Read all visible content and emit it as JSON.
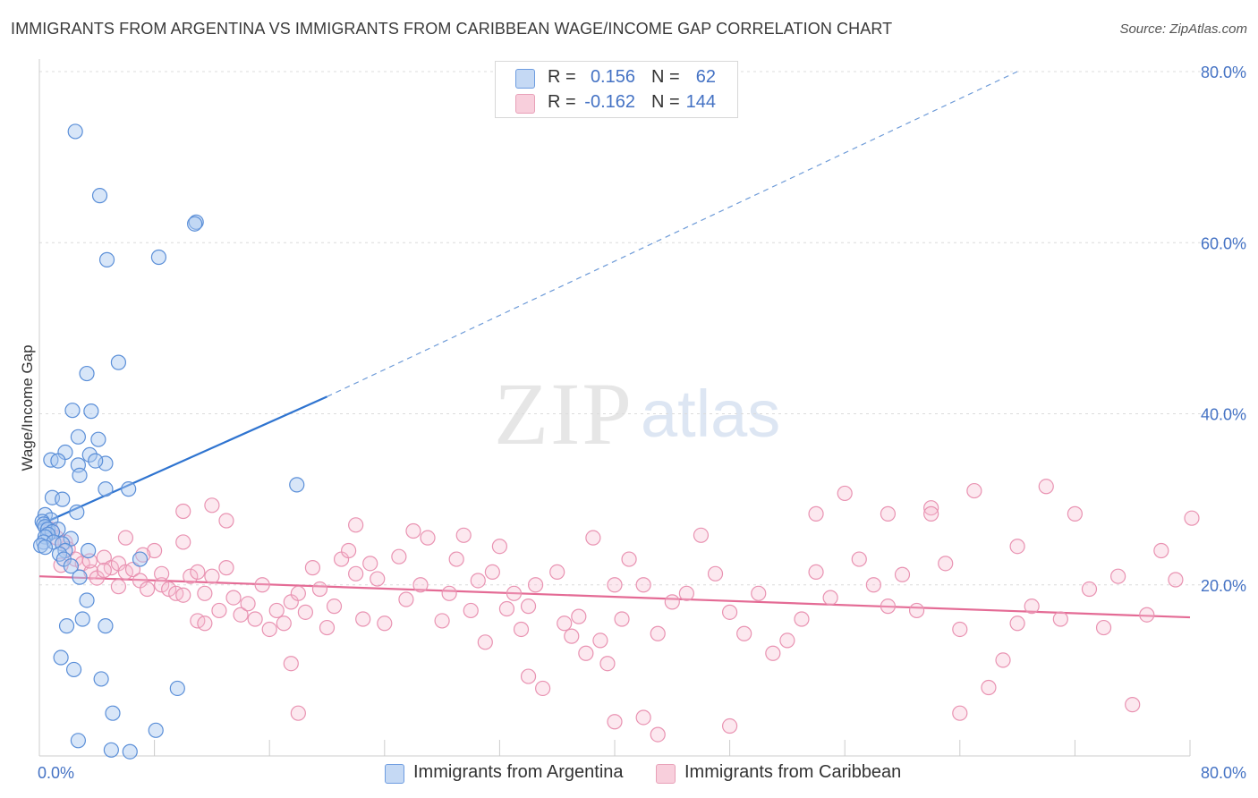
{
  "title": "IMMIGRANTS FROM ARGENTINA VS IMMIGRANTS FROM CARIBBEAN WAGE/INCOME GAP CORRELATION CHART",
  "source": "Source: ZipAtlas.com",
  "watermark": {
    "zip": "ZIP",
    "atlas": "atlas"
  },
  "legend": {
    "argentina": {
      "r_label": "R =",
      "r_value": "0.156",
      "n_label": "N =",
      "n_value": "62"
    },
    "caribbean": {
      "r_label": "R =",
      "r_value": "-0.162",
      "n_label": "N =",
      "n_value": "144"
    }
  },
  "bottom_legend": {
    "argentina": "Immigrants from Argentina",
    "caribbean": "Immigrants from Caribbean"
  },
  "colors": {
    "argentina": "#4a86d8",
    "argentina_fill": "#a9c8f0",
    "caribbean": "#e8729b",
    "caribbean_fill": "#f5bed0",
    "axis_text": "#4472c4"
  },
  "chart_data": {
    "type": "scatter",
    "title": "IMMIGRANTS FROM ARGENTINA VS IMMIGRANTS FROM CARIBBEAN WAGE/INCOME GAP CORRELATION CHART",
    "xlabel": "",
    "ylabel": "Wage/Income Gap",
    "xlim": [
      0,
      0.8
    ],
    "ylim": [
      0,
      0.8
    ],
    "x_tick_labels": [
      "0.0%",
      "80.0%"
    ],
    "y_tick_labels": [
      "20.0%",
      "40.0%",
      "60.0%",
      "80.0%"
    ],
    "y_ticks": [
      0.2,
      0.4,
      0.6,
      0.8
    ],
    "series": [
      {
        "name": "Immigrants from Argentina",
        "r": 0.156,
        "n": 62,
        "trend": {
          "x0": 0.0,
          "y0": 0.27,
          "x1": 0.2,
          "y1": 0.42,
          "dashed_to_x": 0.68,
          "dashed_to_y": 0.8
        },
        "points": [
          [
            0.025,
            0.73
          ],
          [
            0.042,
            0.655
          ],
          [
            0.109,
            0.624
          ],
          [
            0.108,
            0.622
          ],
          [
            0.047,
            0.58
          ],
          [
            0.083,
            0.583
          ],
          [
            0.033,
            0.447
          ],
          [
            0.055,
            0.46
          ],
          [
            0.023,
            0.404
          ],
          [
            0.036,
            0.403
          ],
          [
            0.027,
            0.373
          ],
          [
            0.041,
            0.37
          ],
          [
            0.018,
            0.355
          ],
          [
            0.035,
            0.352
          ],
          [
            0.008,
            0.346
          ],
          [
            0.027,
            0.34
          ],
          [
            0.046,
            0.342
          ],
          [
            0.039,
            0.345
          ],
          [
            0.013,
            0.345
          ],
          [
            0.028,
            0.328
          ],
          [
            0.046,
            0.312
          ],
          [
            0.062,
            0.312
          ],
          [
            0.179,
            0.317
          ],
          [
            0.009,
            0.302
          ],
          [
            0.016,
            0.3
          ],
          [
            0.004,
            0.282
          ],
          [
            0.026,
            0.285
          ],
          [
            0.008,
            0.276
          ],
          [
            0.002,
            0.274
          ],
          [
            0.003,
            0.271
          ],
          [
            0.004,
            0.268
          ],
          [
            0.006,
            0.265
          ],
          [
            0.013,
            0.265
          ],
          [
            0.009,
            0.262
          ],
          [
            0.006,
            0.259
          ],
          [
            0.004,
            0.256
          ],
          [
            0.022,
            0.254
          ],
          [
            0.003,
            0.25
          ],
          [
            0.01,
            0.25
          ],
          [
            0.016,
            0.248
          ],
          [
            0.001,
            0.246
          ],
          [
            0.004,
            0.244
          ],
          [
            0.018,
            0.24
          ],
          [
            0.034,
            0.24
          ],
          [
            0.014,
            0.236
          ],
          [
            0.017,
            0.23
          ],
          [
            0.022,
            0.222
          ],
          [
            0.07,
            0.23
          ],
          [
            0.028,
            0.209
          ],
          [
            0.033,
            0.182
          ],
          [
            0.03,
            0.16
          ],
          [
            0.019,
            0.152
          ],
          [
            0.046,
            0.152
          ],
          [
            0.015,
            0.115
          ],
          [
            0.024,
            0.101
          ],
          [
            0.043,
            0.09
          ],
          [
            0.096,
            0.079
          ],
          [
            0.051,
            0.05
          ],
          [
            0.027,
            0.018
          ],
          [
            0.081,
            0.03
          ],
          [
            0.05,
            0.007
          ],
          [
            0.063,
            0.005
          ]
        ]
      },
      {
        "name": "Immigrants from Caribbean",
        "r": -0.162,
        "n": 144,
        "trend": {
          "x0": 0.0,
          "y0": 0.21,
          "x1": 0.8,
          "y1": 0.162
        },
        "points": [
          [
            0.008,
            0.265
          ],
          [
            0.012,
            0.255
          ],
          [
            0.018,
            0.25
          ],
          [
            0.02,
            0.242
          ],
          [
            0.025,
            0.23
          ],
          [
            0.03,
            0.225
          ],
          [
            0.036,
            0.215
          ],
          [
            0.04,
            0.208
          ],
          [
            0.045,
            0.232
          ],
          [
            0.05,
            0.22
          ],
          [
            0.055,
            0.225
          ],
          [
            0.06,
            0.215
          ],
          [
            0.065,
            0.218
          ],
          [
            0.07,
            0.205
          ],
          [
            0.075,
            0.195
          ],
          [
            0.08,
            0.24
          ],
          [
            0.085,
            0.2
          ],
          [
            0.09,
            0.195
          ],
          [
            0.095,
            0.19
          ],
          [
            0.1,
            0.25
          ],
          [
            0.105,
            0.21
          ],
          [
            0.11,
            0.215
          ],
          [
            0.115,
            0.19
          ],
          [
            0.12,
            0.21
          ],
          [
            0.125,
            0.17
          ],
          [
            0.13,
            0.22
          ],
          [
            0.135,
            0.185
          ],
          [
            0.14,
            0.165
          ],
          [
            0.145,
            0.178
          ],
          [
            0.15,
            0.16
          ],
          [
            0.155,
            0.2
          ],
          [
            0.16,
            0.148
          ],
          [
            0.165,
            0.17
          ],
          [
            0.17,
            0.155
          ],
          [
            0.175,
            0.18
          ],
          [
            0.18,
            0.19
          ],
          [
            0.185,
            0.168
          ],
          [
            0.19,
            0.22
          ],
          [
            0.195,
            0.195
          ],
          [
            0.2,
            0.15
          ],
          [
            0.205,
            0.175
          ],
          [
            0.21,
            0.23
          ],
          [
            0.215,
            0.24
          ],
          [
            0.22,
            0.213
          ],
          [
            0.225,
            0.16
          ],
          [
            0.23,
            0.225
          ],
          [
            0.235,
            0.207
          ],
          [
            0.24,
            0.155
          ],
          [
            0.25,
            0.233
          ],
          [
            0.255,
            0.183
          ],
          [
            0.26,
            0.263
          ],
          [
            0.265,
            0.2
          ],
          [
            0.27,
            0.255
          ],
          [
            0.28,
            0.158
          ],
          [
            0.285,
            0.19
          ],
          [
            0.29,
            0.23
          ],
          [
            0.295,
            0.258
          ],
          [
            0.3,
            0.17
          ],
          [
            0.305,
            0.205
          ],
          [
            0.31,
            0.133
          ],
          [
            0.315,
            0.215
          ],
          [
            0.32,
            0.245
          ],
          [
            0.325,
            0.172
          ],
          [
            0.33,
            0.19
          ],
          [
            0.335,
            0.148
          ],
          [
            0.34,
            0.175
          ],
          [
            0.345,
            0.2
          ],
          [
            0.36,
            0.215
          ],
          [
            0.365,
            0.155
          ],
          [
            0.37,
            0.14
          ],
          [
            0.375,
            0.163
          ],
          [
            0.38,
            0.12
          ],
          [
            0.385,
            0.255
          ],
          [
            0.39,
            0.135
          ],
          [
            0.395,
            0.108
          ],
          [
            0.4,
            0.2
          ],
          [
            0.405,
            0.16
          ],
          [
            0.41,
            0.23
          ],
          [
            0.42,
            0.2
          ],
          [
            0.43,
            0.143
          ],
          [
            0.44,
            0.18
          ],
          [
            0.45,
            0.19
          ],
          [
            0.46,
            0.258
          ],
          [
            0.47,
            0.213
          ],
          [
            0.48,
            0.168
          ],
          [
            0.49,
            0.143
          ],
          [
            0.5,
            0.19
          ],
          [
            0.51,
            0.12
          ],
          [
            0.52,
            0.135
          ],
          [
            0.53,
            0.16
          ],
          [
            0.54,
            0.215
          ],
          [
            0.55,
            0.185
          ],
          [
            0.56,
            0.307
          ],
          [
            0.57,
            0.23
          ],
          [
            0.58,
            0.2
          ],
          [
            0.59,
            0.175
          ],
          [
            0.6,
            0.212
          ],
          [
            0.61,
            0.17
          ],
          [
            0.62,
            0.29
          ],
          [
            0.63,
            0.225
          ],
          [
            0.64,
            0.148
          ],
          [
            0.65,
            0.31
          ],
          [
            0.66,
            0.08
          ],
          [
            0.67,
            0.112
          ],
          [
            0.68,
            0.155
          ],
          [
            0.69,
            0.175
          ],
          [
            0.7,
            0.315
          ],
          [
            0.71,
            0.16
          ],
          [
            0.72,
            0.283
          ],
          [
            0.73,
            0.195
          ],
          [
            0.74,
            0.15
          ],
          [
            0.75,
            0.21
          ],
          [
            0.76,
            0.06
          ],
          [
            0.77,
            0.165
          ],
          [
            0.78,
            0.24
          ],
          [
            0.64,
            0.05
          ],
          [
            0.34,
            0.093
          ],
          [
            0.35,
            0.079
          ],
          [
            0.175,
            0.108
          ],
          [
            0.18,
            0.05
          ],
          [
            0.4,
            0.04
          ],
          [
            0.42,
            0.045
          ],
          [
            0.43,
            0.025
          ],
          [
            0.48,
            0.035
          ],
          [
            0.1,
            0.286
          ],
          [
            0.13,
            0.275
          ],
          [
            0.22,
            0.27
          ],
          [
            0.12,
            0.293
          ],
          [
            0.06,
            0.255
          ],
          [
            0.015,
            0.223
          ],
          [
            0.035,
            0.228
          ],
          [
            0.045,
            0.217
          ],
          [
            0.055,
            0.198
          ],
          [
            0.072,
            0.235
          ],
          [
            0.085,
            0.213
          ],
          [
            0.1,
            0.188
          ],
          [
            0.11,
            0.158
          ],
          [
            0.115,
            0.155
          ],
          [
            0.68,
            0.245
          ],
          [
            0.79,
            0.206
          ],
          [
            0.59,
            0.283
          ],
          [
            0.54,
            0.283
          ],
          [
            0.62,
            0.283
          ],
          [
            0.81,
            0.278
          ]
        ]
      }
    ]
  }
}
